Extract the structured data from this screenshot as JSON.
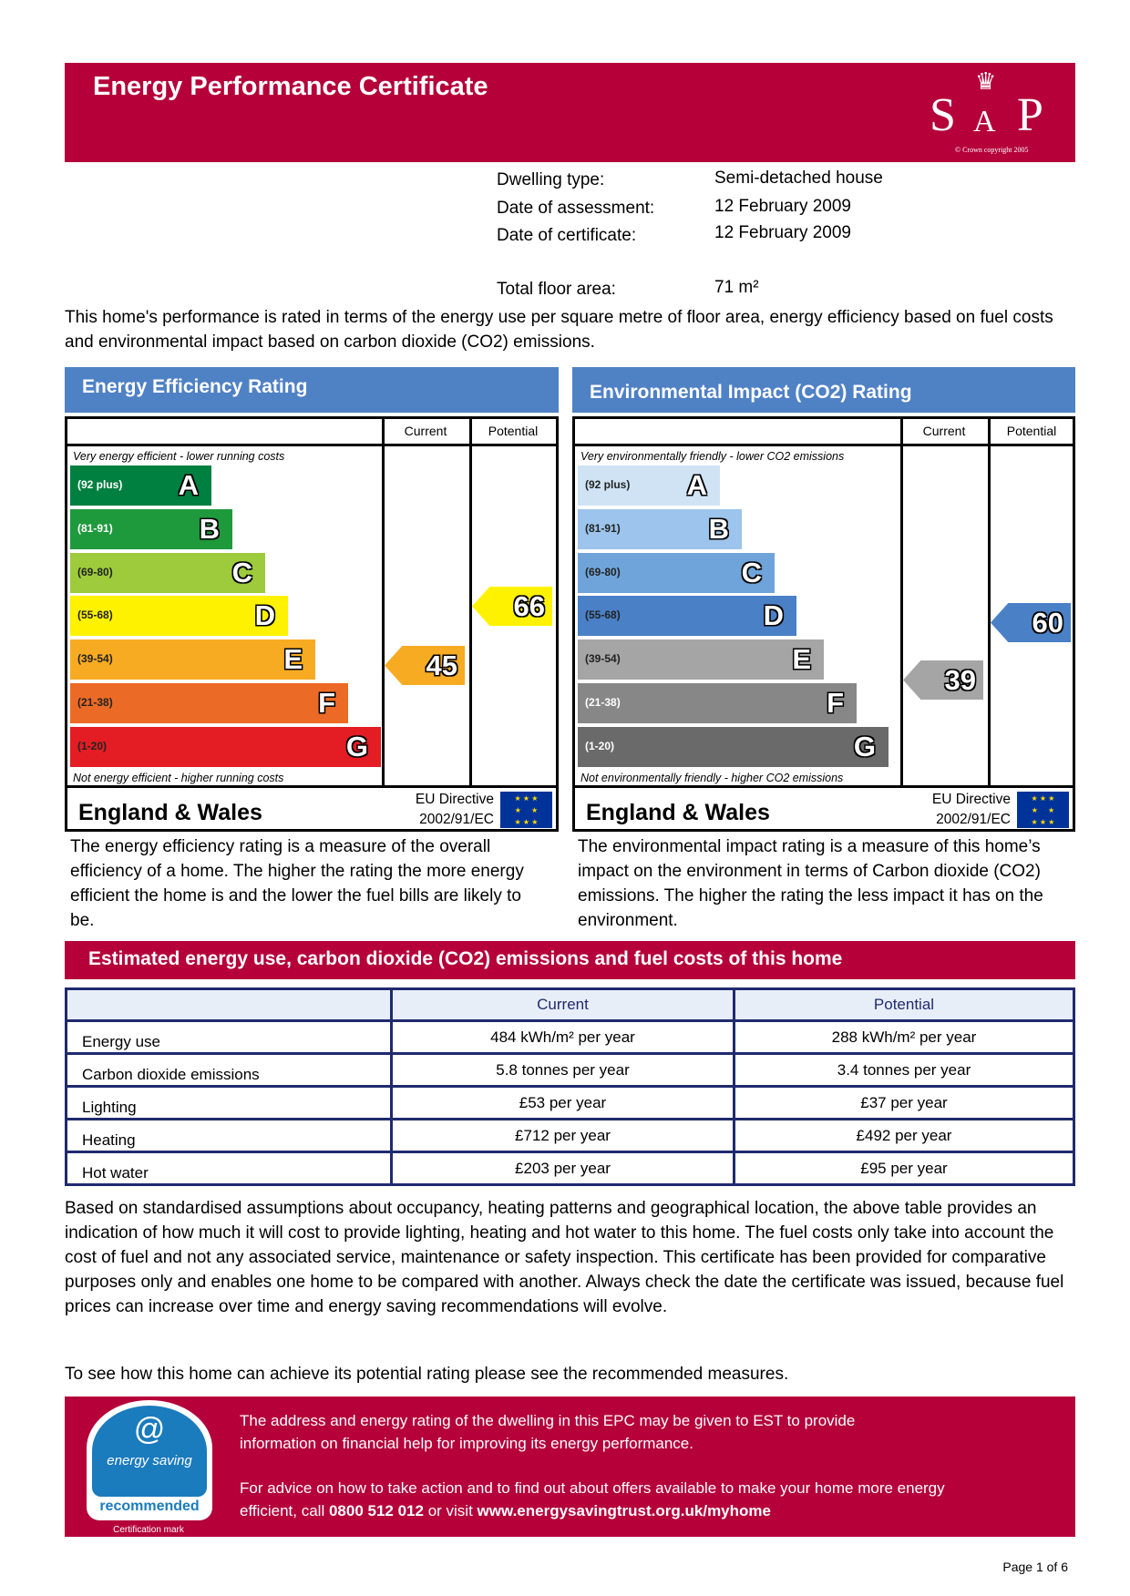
{
  "header": {
    "title": "Energy Performance Certificate",
    "logo_text": "SAP",
    "logo_copyright": "© Crown copyright 2005"
  },
  "info": [
    {
      "label": "Dwelling type:",
      "value": "Semi-detached house"
    },
    {
      "label": "Date of assessment:",
      "value": "12 February 2009"
    },
    {
      "label": "Date of certificate:",
      "value": "12 February 2009"
    },
    {
      "label": "Total floor area:",
      "value": "71 m²"
    }
  ],
  "intro": "This home's performance is rated in terms of the energy use per square metre of floor area, energy efficiency based on fuel costs and environmental impact based on carbon dioxide (CO2) emissions.",
  "efficiency": {
    "title": "Energy Efficiency Rating",
    "col_current": "Current",
    "col_potential": "Potential",
    "top_caption": "Very energy efficient - lower running costs",
    "bottom_caption": "Not energy efficient - higher running costs",
    "bands": [
      {
        "range": "(92 plus)",
        "letter": "A",
        "color": "#008040"
      },
      {
        "range": "(81-91)",
        "letter": "B",
        "color": "#1e9a3c"
      },
      {
        "range": "(69-80)",
        "letter": "C",
        "color": "#9dcb3c"
      },
      {
        "range": "(55-68)",
        "letter": "D",
        "color": "#fff200"
      },
      {
        "range": "(39-54)",
        "letter": "E",
        "color": "#f7ab22"
      },
      {
        "range": "(21-38)",
        "letter": "F",
        "color": "#eb6a25"
      },
      {
        "range": "(1-20)",
        "letter": "G",
        "color": "#e31d23"
      }
    ],
    "current": "45",
    "potential": "66",
    "current_color": "#f7ab22",
    "potential_color": "#fff200",
    "region": "England & Wales",
    "directive_1": "EU Directive",
    "directive_2": "2002/91/EC",
    "description": "The energy efficiency rating is a measure of the overall efficiency of a home. The higher the rating the more energy efficient the home is and the lower the fuel bills are likely to be."
  },
  "environment": {
    "title": "Environmental Impact (CO2) Rating",
    "col_current": "Current",
    "col_potential": "Potential",
    "top_caption": "Very environmentally friendly - lower CO2 emissions",
    "bottom_caption": "Not environmentally friendly - higher CO2 emissions",
    "bands": [
      {
        "range": "(92 plus)",
        "letter": "A",
        "color": "#cfe3f5"
      },
      {
        "range": "(81-91)",
        "letter": "B",
        "color": "#9cc4ec"
      },
      {
        "range": "(69-80)",
        "letter": "C",
        "color": "#6fa4da"
      },
      {
        "range": "(55-68)",
        "letter": "D",
        "color": "#4a80c6"
      },
      {
        "range": "(39-54)",
        "letter": "E",
        "color": "#a5a5a5"
      },
      {
        "range": "(21-38)",
        "letter": "F",
        "color": "#878787"
      },
      {
        "range": "(1-20)",
        "letter": "G",
        "color": "#6a6a6a"
      }
    ],
    "current": "39",
    "potential": "60",
    "current_color": "#a5a5a5",
    "potential_color": "#4a80c6",
    "region": "England & Wales",
    "directive_1": "EU Directive",
    "directive_2": "2002/91/EC",
    "description": "The environmental impact rating is a measure of this home’s impact on the environment in terms of Carbon dioxide (CO2) emissions. The higher the rating the less impact it has on the environment."
  },
  "costs": {
    "title": "Estimated energy use, carbon dioxide (CO2) emissions and fuel costs of this home",
    "col_current": "Current",
    "col_potential": "Potential",
    "rows": [
      {
        "name": "Energy use",
        "current": "484 kWh/m² per year",
        "potential": "288 kWh/m² per year"
      },
      {
        "name": "Carbon dioxide emissions",
        "current": "5.8 tonnes per year",
        "potential": "3.4 tonnes per year"
      },
      {
        "name": "Lighting",
        "current": "£53 per year",
        "potential": "£37 per year"
      },
      {
        "name": "Heating",
        "current": "£712 per year",
        "potential": "£492 per year"
      },
      {
        "name": "Hot water",
        "current": "£203 per year",
        "potential": "£95 per year"
      }
    ]
  },
  "assumptions": "Based on standardised assumptions about occupancy, heating patterns and geographical location, the above table provides an indication of how much it will cost to provide lighting, heating and hot water to this home. The fuel costs only take into account the cost of fuel and not any associated service, maintenance or safety inspection. This certificate has been provided for comparative purposes only and enables one home to be compared with another. Always check the date the certificate was issued, because fuel prices can increase over time and energy saving recommendations will evolve.",
  "see_measures": "To see how this home can achieve its potential rating please see the recommended measures.",
  "footer": {
    "logo_word1": "energy saving",
    "logo_word2": "recommended",
    "cert_mark": "Certification mark",
    "text1": "The address and energy rating of the dwelling in this EPC may be given to EST to provide information on financial help for improving its energy performance.",
    "text2_pre": "For advice on how to take action and to find out about offers available to make your home more energy efficient, call ",
    "phone": "0800 512 012",
    "text2_mid": " or visit ",
    "url": "www.energysavingtrust.org.uk/myhome"
  },
  "page": "Page 1 of 6"
}
